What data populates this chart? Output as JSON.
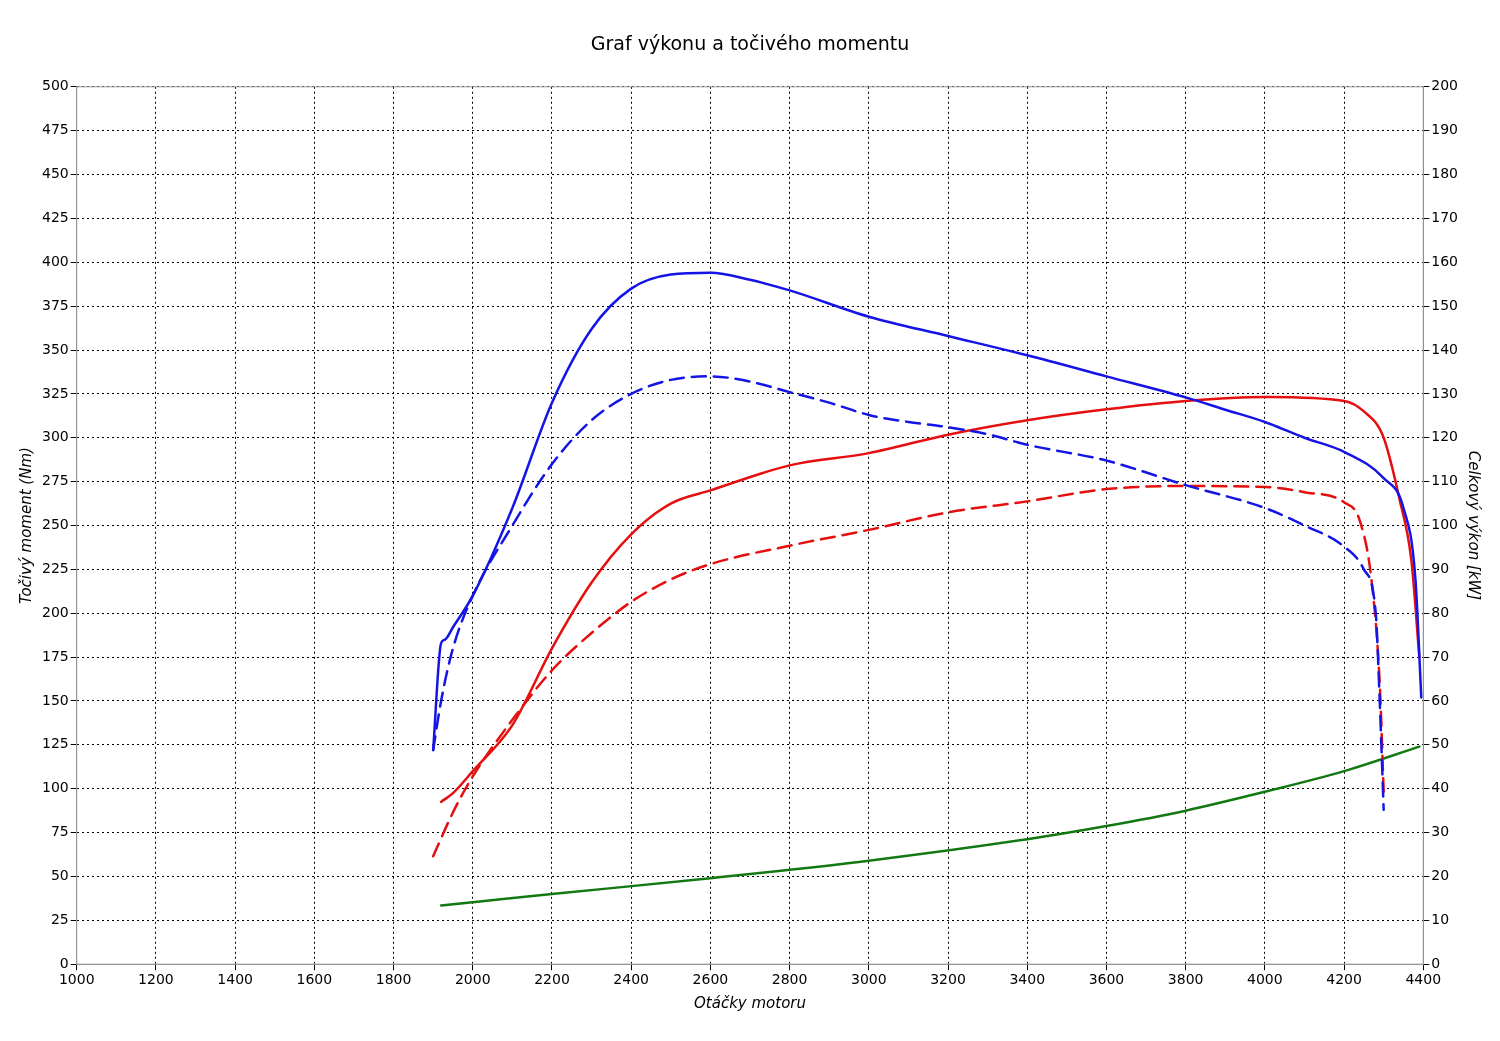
{
  "chart_data": {
    "type": "line",
    "title": "Graf výkonu a točivého momentu",
    "xlabel": "Otáčky motoru",
    "ylabel": "Točivý moment (Nm)",
    "y2label": "Celkový výkon [kW]",
    "xlim": [
      1000,
      4400
    ],
    "xticks": [
      1000,
      1200,
      1400,
      1600,
      1800,
      2000,
      2200,
      2400,
      2600,
      2800,
      3000,
      3200,
      3400,
      3600,
      3800,
      4000,
      4200,
      4400
    ],
    "ylim": [
      0,
      500
    ],
    "yticks": [
      0,
      25,
      50,
      75,
      100,
      125,
      150,
      175,
      200,
      225,
      250,
      275,
      300,
      325,
      350,
      375,
      400,
      425,
      450,
      475,
      500
    ],
    "y2lim": [
      0,
      200
    ],
    "y2ticks": [
      0,
      10,
      20,
      30,
      40,
      50,
      60,
      70,
      80,
      90,
      100,
      110,
      120,
      130,
      140,
      150,
      160,
      170,
      180,
      190,
      200
    ],
    "grid": true,
    "legend": false,
    "marker": "none",
    "series": [
      {
        "color": "#1414e6",
        "line_style": "solid",
        "x": [
          1900,
          1920,
          1930,
          1950,
          2000,
          2100,
          2200,
          2300,
          2400,
          2500,
          2600,
          2700,
          2800,
          3000,
          3200,
          3400,
          3600,
          3800,
          3900,
          4000,
          4100,
          4200,
          4300,
          4350,
          4380,
          4395
        ],
        "values": [
          122,
          183,
          185,
          192,
          210,
          260,
          320,
          362,
          385,
          393,
          394,
          390,
          384,
          369,
          358,
          347,
          335,
          323,
          316,
          309,
          300,
          292,
          277,
          260,
          220,
          152
        ]
      },
      {
        "color": "#1414e6",
        "line_style": "dashed",
        "x": [
          1900,
          1920,
          1950,
          2000,
          2100,
          2200,
          2300,
          2400,
          2500,
          2600,
          2700,
          2800,
          2900,
          3000,
          3100,
          3200,
          3300,
          3400,
          3600,
          3800,
          4000,
          4100,
          4200,
          4250,
          4280,
          4290,
          4300
        ],
        "values": [
          122,
          150,
          180,
          210,
          250,
          285,
          310,
          325,
          333,
          335,
          332,
          326,
          320,
          313,
          309,
          306,
          302,
          296,
          287,
          273,
          260,
          250,
          238,
          225,
          200,
          150,
          88
        ]
      },
      {
        "color": "#e60f0f",
        "line_style": "solid",
        "axis": "y2",
        "x": [
          1920,
          1950,
          2000,
          2100,
          2200,
          2300,
          2400,
          2500,
          2600,
          2800,
          3000,
          3200,
          3400,
          3600,
          3800,
          4000,
          4200,
          4250,
          4300,
          4340,
          4370,
          4390
        ],
        "values": [
          37,
          39,
          44,
          54.5,
          72,
          87,
          98,
          105,
          108,
          113.7,
          116.5,
          120.7,
          124,
          126.5,
          128.4,
          129.3,
          128.4,
          126,
          120,
          106,
          92,
          70
        ]
      },
      {
        "color": "#e60f0f",
        "line_style": "dashed",
        "axis": "y2",
        "x": [
          1900,
          1950,
          2000,
          2100,
          2200,
          2300,
          2400,
          2500,
          2600,
          2800,
          3000,
          3200,
          3400,
          3600,
          3800,
          4000,
          4100,
          4200,
          4240,
          4270,
          4290,
          4300
        ],
        "values": [
          24.6,
          34.6,
          42.8,
          55.7,
          67,
          75.5,
          82.6,
          87.7,
          91.2,
          95.4,
          99,
          103,
          105.5,
          108.3,
          109,
          108.8,
          107.6,
          105.3,
          101,
          87,
          64,
          39.3
        ]
      },
      {
        "color": "#127812",
        "line_style": "solid",
        "axis": "y2",
        "x": [
          1920,
          2200,
          2600,
          3000,
          3400,
          3600,
          3800,
          4000,
          4200,
          4390
        ],
        "values": [
          13.4,
          16,
          19.6,
          23.6,
          28.5,
          31.5,
          35,
          39.3,
          44,
          49.6
        ]
      }
    ]
  }
}
